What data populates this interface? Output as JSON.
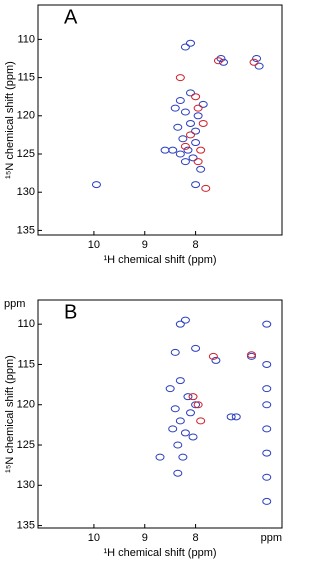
{
  "chart_data": [
    {
      "type": "scatter",
      "label": "A",
      "xlabel": "¹H chemical shift (ppm)",
      "ylabel": "¹⁵N chemical shift (ppm)",
      "xlim": [
        11.1,
        6.3
      ],
      "ylim": [
        105.5,
        135.6
      ],
      "xticks": [
        10,
        9,
        8
      ],
      "yticks": [
        110,
        115,
        120,
        125,
        130,
        135
      ],
      "series": [
        {
          "color": "#2b3fbf",
          "x": [
            8.3,
            8.2,
            8.1,
            8.0,
            8.25,
            8.15,
            8.35,
            7.95,
            8.05,
            8.2,
            8.4,
            8.1,
            7.85,
            8.3,
            8.0,
            8.45,
            8.2,
            8.1,
            7.5,
            7.45,
            6.8,
            6.75,
            8.6,
            8.0,
            9.95,
            7.9
          ],
          "values": [
            118,
            119.5,
            121,
            122,
            123,
            124.5,
            121.5,
            120,
            125.5,
            126,
            119,
            117,
            118.5,
            125,
            123.5,
            124.5,
            111,
            110.5,
            112.5,
            113,
            112.5,
            113.5,
            124.5,
            129,
            129,
            127
          ]
        },
        {
          "color": "#d0202a",
          "x": [
            7.95,
            8.1,
            7.85,
            8.2,
            7.9,
            8.0,
            7.8,
            7.55,
            6.85,
            8.3,
            7.95
          ],
          "values": [
            119,
            122.5,
            121,
            124,
            124.5,
            117.5,
            129.5,
            112.8,
            113,
            115,
            126
          ]
        }
      ]
    },
    {
      "type": "scatter",
      "label": "B",
      "xlabel": "¹H chemical shift (ppm)",
      "ylabel": "¹⁵N chemical shift (ppm)",
      "x_unit": "ppm",
      "y_unit": "ppm",
      "xlim": [
        11.1,
        6.3
      ],
      "ylim": [
        107,
        135.3
      ],
      "xticks": [
        10,
        9,
        8
      ],
      "yticks": [
        110,
        115,
        120,
        125,
        130,
        135
      ],
      "series": [
        {
          "color": "#2b3fbf",
          "x": [
            8.3,
            8.2,
            8.5,
            8.4,
            8.3,
            8.2,
            8.1,
            8.0,
            8.35,
            8.25,
            8.15,
            8.45,
            8.05,
            8.3,
            7.6,
            7.2,
            7.3,
            6.9,
            6.6,
            6.6,
            6.6,
            6.6,
            6.6,
            6.6,
            6.6,
            6.6,
            8.0,
            8.4,
            8.7,
            8.35
          ],
          "values": [
            110,
            109.5,
            118,
            120.5,
            122,
            123.5,
            121,
            120,
            125,
            126.5,
            119,
            123,
            124,
            117,
            114.5,
            121.5,
            121.5,
            114,
            110,
            115,
            118,
            120,
            123,
            126,
            129,
            132,
            113,
            113.5,
            126.5,
            128.5
          ]
        },
        {
          "color": "#d0202a",
          "x": [
            7.95,
            7.9,
            7.65,
            6.9,
            8.05
          ],
          "values": [
            120,
            122,
            114,
            113.8,
            119
          ]
        }
      ]
    }
  ]
}
